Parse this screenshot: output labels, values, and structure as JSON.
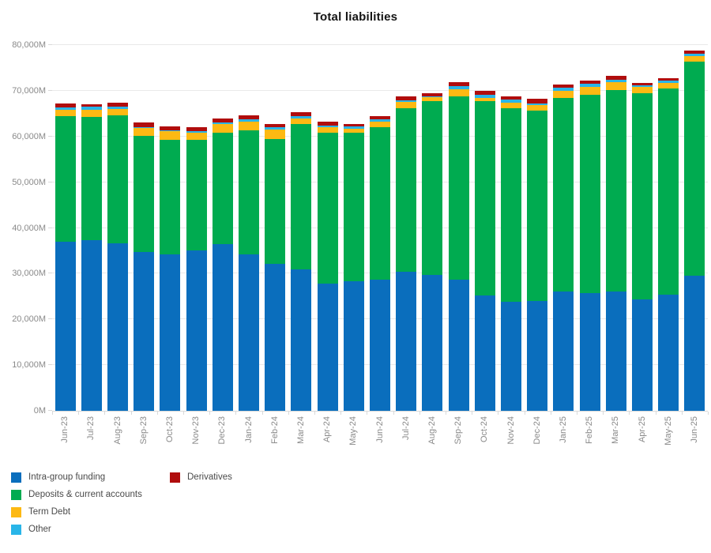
{
  "title": "Total liabilities",
  "colors": {
    "intra_group": "#0a6ebd",
    "deposits": "#00ab50",
    "term_debt": "#fdb913",
    "other": "#29b5e8",
    "derivatives": "#b00d0d",
    "gridline": "#e9e9e9",
    "axis_text": "#8a8a8a"
  },
  "chart_data": {
    "type": "bar",
    "subtype": "stacked-vertical",
    "title": "Total liabilities",
    "xlabel": "",
    "ylabel": "",
    "ylim": [
      0,
      80000
    ],
    "ytick_step": 10000,
    "ytick_labels": [
      "0M",
      "10,000M",
      "20,000M",
      "30,000M",
      "40,000M",
      "50,000M",
      "60,000M",
      "70,000M",
      "80,000M"
    ],
    "grid": true,
    "legend_position": "bottom-left",
    "unit": "millions",
    "categories": [
      "Jun-23",
      "Jul-23",
      "Aug-23",
      "Sep-23",
      "Oct-23",
      "Nov-23",
      "Dec-23",
      "Jan-24",
      "Feb-24",
      "Mar-24",
      "Apr-24",
      "May-24",
      "Jun-24",
      "Jul-24",
      "Aug-24",
      "Sep-24",
      "Oct-24",
      "Nov-24",
      "Dec-24",
      "Jan-25",
      "Feb-25",
      "Mar-25",
      "Apr-25",
      "May-25",
      "Jun-25"
    ],
    "series": [
      {
        "name": "Intra-group funding",
        "color_key": "intra_group",
        "values": [
          36900,
          37300,
          36700,
          34700,
          34200,
          35000,
          36500,
          34200,
          32200,
          30900,
          27900,
          28400,
          28600,
          30400,
          29700,
          28600,
          25300,
          23900,
          24100,
          26100,
          25800,
          26100,
          24300,
          25400,
          29500
        ]
      },
      {
        "name": "Deposits & current accounts",
        "color_key": "deposits",
        "values": [
          27600,
          27000,
          27900,
          25500,
          25100,
          24200,
          24400,
          27100,
          27300,
          31900,
          32900,
          32500,
          33400,
          35800,
          38000,
          40100,
          42400,
          42300,
          41500,
          42400,
          43400,
          44100,
          45200,
          45100,
          46900
        ]
      },
      {
        "name": "Term Debt",
        "color_key": "term_debt",
        "values": [
          1400,
          1600,
          1400,
          1700,
          1800,
          1600,
          1900,
          2000,
          2100,
          1200,
          1200,
          800,
          1200,
          1400,
          900,
          1700,
          700,
          1200,
          1300,
          1500,
          1700,
          1600,
          1300,
          1200,
          1200
        ]
      },
      {
        "name": "Other",
        "color_key": "other",
        "values": [
          500,
          700,
          500,
          200,
          200,
          300,
          200,
          500,
          400,
          400,
          400,
          500,
          600,
          300,
          200,
          600,
          700,
          600,
          400,
          600,
          600,
          600,
          400,
          500,
          500
        ]
      },
      {
        "name": "Derivatives",
        "color_key": "derivatives",
        "values": [
          800,
          400,
          900,
          1000,
          900,
          900,
          900,
          900,
          800,
          900,
          800,
          600,
          700,
          900,
          600,
          800,
          800,
          800,
          1000,
          800,
          800,
          900,
          500,
          500,
          700
        ]
      }
    ],
    "totals": [
      67200,
      67000,
      67400,
      63100,
      62200,
      62000,
      63900,
      64700,
      62800,
      65300,
      63200,
      62800,
      64500,
      68800,
      69400,
      71800,
      69900,
      68800,
      68300,
      71400,
      72300,
      73300,
      71700,
      72700,
      78800
    ]
  },
  "legend": {
    "columns": [
      [
        0,
        1,
        2,
        3
      ],
      [
        4
      ]
    ]
  }
}
